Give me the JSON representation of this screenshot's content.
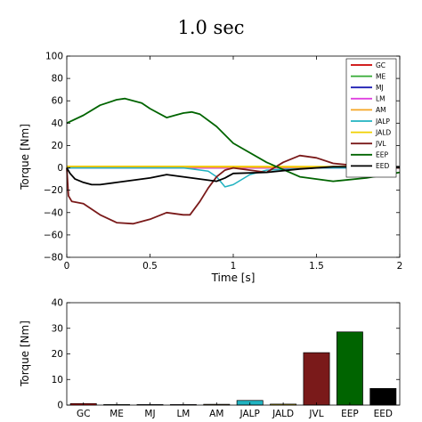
{
  "chart_data": [
    {
      "type": "line",
      "title": "1.0 sec",
      "xlabel": "Time [s]",
      "ylabel": "Torque [Nm]",
      "xlim": [
        0,
        2
      ],
      "ylim": [
        -80,
        100
      ],
      "xticks": [
        "0",
        "0.5",
        "1",
        "1.5",
        "2"
      ],
      "yticks": [
        "−80",
        "−60",
        "−40",
        "−20",
        "0",
        "20",
        "40",
        "60",
        "80",
        "100"
      ],
      "legend_position": "top-right",
      "grid": false,
      "series": [
        {
          "name": "GC",
          "color": "#cc0000",
          "x": [
            0,
            2
          ],
          "y": [
            0.5,
            0.5
          ]
        },
        {
          "name": "ME",
          "color": "#33aa33",
          "x": [
            0,
            2
          ],
          "y": [
            0.2,
            0.2
          ]
        },
        {
          "name": "MJ",
          "color": "#1f1fb4",
          "x": [
            0,
            2
          ],
          "y": [
            0,
            0
          ]
        },
        {
          "name": "LM",
          "color": "#e040e0",
          "x": [
            0,
            2
          ],
          "y": [
            0,
            0
          ]
        },
        {
          "name": "AM",
          "color": "#f5a623",
          "x": [
            0,
            0.5,
            1.0,
            1.5,
            2.0
          ],
          "y": [
            0.8,
            0.8,
            0.6,
            0.4,
            0.3
          ]
        },
        {
          "name": "JALP",
          "color": "#20b2c0",
          "x": [
            0,
            0.7,
            0.75,
            0.85,
            0.9,
            0.95,
            1.0,
            1.1,
            1.2,
            1.5,
            2.0
          ],
          "y": [
            0,
            0,
            -1,
            -3,
            -8,
            -17,
            -15,
            -6,
            -2,
            0,
            0
          ]
        },
        {
          "name": "JALD",
          "color": "#f0d000",
          "x": [
            0,
            0.5,
            1.0,
            1.5,
            2.0
          ],
          "y": [
            1.5,
            1.4,
            1.3,
            1.2,
            1.1
          ]
        },
        {
          "name": "JVL",
          "color": "#7a1a1a",
          "x": [
            0,
            0.01,
            0.03,
            0.1,
            0.2,
            0.3,
            0.4,
            0.5,
            0.6,
            0.7,
            0.74,
            0.8,
            0.85,
            0.9,
            0.95,
            1.0,
            1.1,
            1.2,
            1.3,
            1.4,
            1.5,
            1.6,
            1.8,
            2.0
          ],
          "y": [
            0,
            -25,
            -30,
            -32,
            -42,
            -49,
            -50,
            -46,
            -40,
            -42,
            -42,
            -30,
            -18,
            -8,
            -2,
            0,
            -2,
            -4,
            5,
            11,
            9,
            4,
            1,
            0
          ]
        },
        {
          "name": "EEP",
          "color": "#006400",
          "x": [
            0,
            0.1,
            0.2,
            0.3,
            0.35,
            0.45,
            0.5,
            0.6,
            0.65,
            0.7,
            0.75,
            0.8,
            0.9,
            1.0,
            1.2,
            1.4,
            1.6,
            1.8,
            2.0
          ],
          "y": [
            40,
            47,
            56,
            61,
            62,
            58,
            53,
            45,
            47,
            49,
            50,
            48,
            37,
            22,
            5,
            -8,
            -12,
            -9,
            -4
          ]
        },
        {
          "name": "EED",
          "color": "#000000",
          "x": [
            0,
            0.02,
            0.05,
            0.1,
            0.15,
            0.2,
            0.3,
            0.4,
            0.5,
            0.6,
            0.7,
            0.8,
            0.9,
            0.95,
            1.0,
            1.2,
            1.4,
            1.6,
            1.8,
            2.0
          ],
          "y": [
            0,
            -5,
            -10,
            -13,
            -15,
            -15,
            -13,
            -11,
            -9,
            -6,
            -8,
            -10,
            -12,
            -9,
            -5,
            -4,
            -1,
            1,
            1,
            1
          ]
        }
      ]
    },
    {
      "type": "bar",
      "xlabel": "",
      "ylabel": "Torque [Nm]",
      "ylim": [
        0,
        40
      ],
      "yticks": [
        "0",
        "10",
        "20",
        "30",
        "40"
      ],
      "categories": [
        "GC",
        "ME",
        "MJ",
        "LM",
        "AM",
        "JALP",
        "JALD",
        "JVL",
        "EEP",
        "EED"
      ],
      "values": [
        0.6,
        0.2,
        0.2,
        0.2,
        0.3,
        1.8,
        0.4,
        20.5,
        28.6,
        6.5
      ],
      "colors": [
        "#cc0000",
        "#33aa33",
        "#1f1fb4",
        "#e040e0",
        "#f5a623",
        "#20b2c0",
        "#f0d000",
        "#7a1a1a",
        "#006400",
        "#000000"
      ]
    }
  ]
}
